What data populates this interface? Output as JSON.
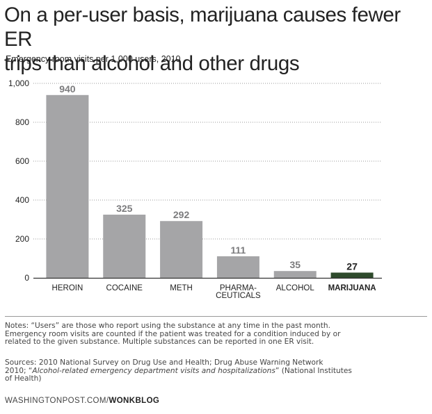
{
  "title_line1": "On a per-user basis, marijuana causes fewer ER",
  "title_line2": "trips than alcohol and other drugs",
  "subtitle": "Emergency room visits per 1,000 users, 2010",
  "chart_data": {
    "type": "bar",
    "title": "On a per-user basis, marijuana causes fewer ER trips than alcohol and other drugs",
    "ylabel": "Emergency room visits per 1,000 users, 2010",
    "xlabel": "",
    "ylim": [
      0,
      1000
    ],
    "yticks": [
      0,
      200,
      400,
      600,
      800,
      1000
    ],
    "ytick_labels": [
      "0",
      "200",
      "400",
      "600",
      "800",
      "1,000"
    ],
    "grid": true,
    "categories": [
      {
        "label": [
          "HEROIN"
        ],
        "value": 940,
        "highlight": false
      },
      {
        "label": [
          "COCAINE"
        ],
        "value": 325,
        "highlight": false
      },
      {
        "label": [
          "METH"
        ],
        "value": 292,
        "highlight": false
      },
      {
        "label": [
          "PHARMA-",
          "CEUTICALS"
        ],
        "value": 111,
        "highlight": false
      },
      {
        "label": [
          "ALCOHOL"
        ],
        "value": 35,
        "highlight": false
      },
      {
        "label": [
          "MARIJUANA"
        ],
        "value": 27,
        "highlight": true
      }
    ],
    "colors": {
      "bar": "#a5a5a7",
      "highlight": "#2e4a2c",
      "value_label": "#7b7b7d",
      "highlight_label": "#222222",
      "grid": "#9a9a9a"
    }
  },
  "notes": {
    "line1": "Notes: “Users” are those who report using the substance at any time in the past month.",
    "line2": "Emergency room visits are counted if the patient was treated for a condition induced by or",
    "line3": "related to the given substance. Multiple substances can be reported in one ER visit."
  },
  "sources": {
    "line1": "Sources: 2010 National Survey on Drug Use and Health; Drug Abuse Warning Network",
    "line2_prefix": "2010; “",
    "line2_italic": "Alcohol-related emergency department visits and hospitalizations",
    "line2_suffix": "” (National Institutes",
    "line3": "of Health)"
  },
  "credit": {
    "site": "WASHINGTONPOST.COM/",
    "section": "WONKBLOG"
  }
}
